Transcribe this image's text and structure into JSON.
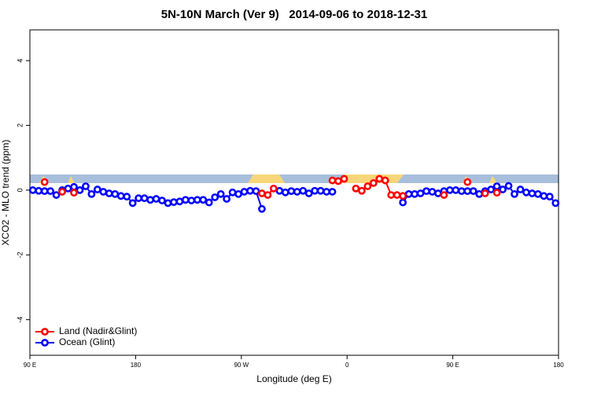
{
  "chart_data": {
    "type": "line",
    "title": "5N-10N March (Ver 9)   2014-09-06 to 2018-12-31",
    "x_label": "Longitude (deg E)",
    "y_label": "XCO2 - MLO trend (ppm)",
    "x": [
      92.5,
      97.5,
      102.5,
      107.5,
      112.5,
      117.5,
      122.5,
      127.5,
      132.5,
      137.5,
      142.5,
      147.5,
      152.5,
      157.5,
      162.5,
      167.5,
      172.5,
      177.5,
      182.5,
      187.5,
      192.5,
      197.5,
      202.5,
      207.5,
      212.5,
      217.5,
      222.5,
      227.5,
      232.5,
      237.5,
      242.5,
      247.5,
      252.5,
      257.5,
      262.5,
      267.5,
      272.5,
      277.5,
      282.5,
      287.5,
      292.5,
      297.5,
      302.5,
      307.5,
      312.5,
      317.5,
      322.5,
      327.5,
      332.5,
      337.5,
      342.5,
      347.5,
      352.5,
      357.5,
      362.5,
      367.5,
      372.5,
      377.5,
      382.5,
      387.5,
      392.5,
      397.5,
      402.5,
      407.5,
      412.5,
      417.5,
      422.5,
      427.5,
      432.5,
      437.5,
      442.5,
      447.5,
      452.5,
      457.5,
      462.5,
      467.5,
      472.5,
      477.5,
      482.5,
      487.5,
      492.5,
      497.5,
      502.5,
      507.5,
      512.5,
      517.5,
      522.5,
      527.5,
      532.5,
      537.5
    ],
    "series": [
      {
        "name": "Land (Nadir&Glint)",
        "color": "#ff0000",
        "values": [
          null,
          null,
          0.25,
          null,
          null,
          -0.05,
          null,
          -0.08,
          null,
          null,
          null,
          null,
          null,
          null,
          null,
          null,
          null,
          null,
          null,
          null,
          null,
          null,
          null,
          null,
          null,
          null,
          null,
          null,
          null,
          null,
          null,
          null,
          null,
          null,
          null,
          null,
          null,
          null,
          null,
          -0.1,
          -0.15,
          0.05,
          null,
          null,
          null,
          null,
          null,
          null,
          null,
          null,
          null,
          0.3,
          0.28,
          0.35,
          null,
          0.05,
          -0.02,
          0.12,
          0.22,
          0.35,
          0.3,
          -0.15,
          -0.15,
          -0.18,
          null,
          null,
          null,
          null,
          null,
          null,
          -0.15,
          null,
          null,
          null,
          0.25,
          null,
          null,
          -0.1,
          null,
          -0.08,
          null,
          null,
          null,
          null,
          null,
          null,
          null,
          null,
          null,
          null
        ]
      },
      {
        "name": "Ocean (Glint)",
        "color": "#0000ff",
        "values": [
          0,
          -0.02,
          -0.03,
          -0.03,
          -0.15,
          0,
          0.05,
          0.1,
          0,
          0.12,
          -0.12,
          0.02,
          -0.05,
          -0.1,
          -0.12,
          -0.18,
          -0.2,
          -0.4,
          -0.25,
          -0.25,
          -0.3,
          -0.27,
          -0.32,
          -0.4,
          -0.37,
          -0.35,
          -0.3,
          -0.32,
          -0.3,
          -0.3,
          -0.38,
          -0.22,
          -0.12,
          -0.27,
          -0.07,
          -0.12,
          -0.05,
          -0.02,
          -0.03,
          -0.58,
          null,
          null,
          -0.02,
          -0.07,
          -0.03,
          -0.05,
          -0.02,
          -0.1,
          -0.02,
          -0.02,
          -0.05,
          -0.05,
          null,
          null,
          null,
          null,
          null,
          null,
          null,
          null,
          null,
          null,
          null,
          -0.38,
          -0.12,
          -0.12,
          -0.1,
          -0.03,
          -0.05,
          -0.1,
          -0.03,
          0,
          0,
          -0.03,
          -0.03,
          -0.03,
          -0.12,
          -0.03,
          0.02,
          0.12,
          0.02,
          0.13,
          -0.12,
          0.02,
          -0.07,
          -0.1,
          -0.12,
          -0.18,
          -0.2,
          -0.4
        ]
      }
    ],
    "xlim": [
      90,
      540
    ],
    "xticks": [
      {
        "value": 90,
        "label": "90 E"
      },
      {
        "value": 180,
        "label": "180"
      },
      {
        "value": 270,
        "label": "90 W"
      },
      {
        "value": 360,
        "label": "0"
      },
      {
        "value": 450,
        "label": "90 E"
      },
      {
        "value": 540,
        "label": "180"
      }
    ],
    "ylim": [
      -5.1,
      4.95
    ],
    "yticks": [
      -4,
      -2,
      0,
      2,
      4
    ],
    "legend": "bottom-left"
  }
}
